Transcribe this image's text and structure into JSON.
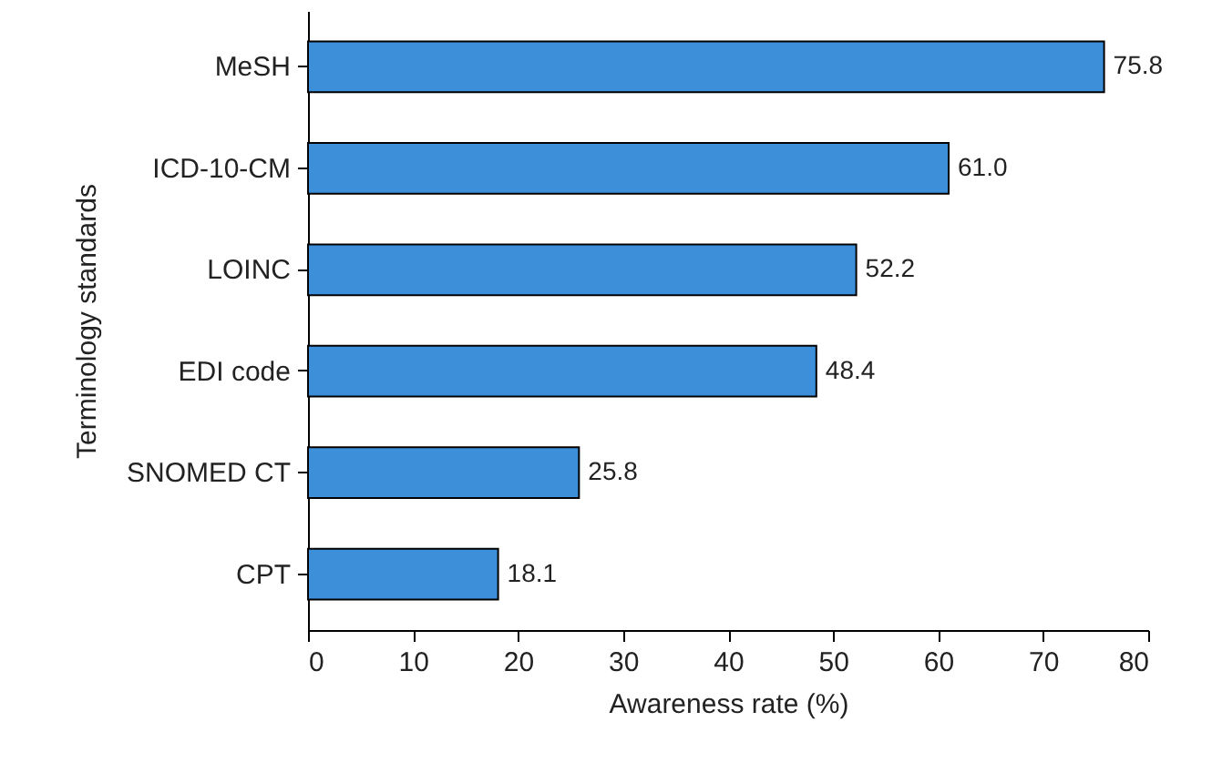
{
  "chart_data": {
    "type": "bar",
    "orientation": "horizontal",
    "xlabel": "Awareness rate (%)",
    "ylabel": "Terminology standards",
    "categories": [
      "MeSH",
      "ICD-10-CM",
      "LOINC",
      "EDI code",
      "SNOMED CT",
      "CPT"
    ],
    "values": [
      75.8,
      61.0,
      52.2,
      48.4,
      25.8,
      18.1
    ],
    "value_labels": [
      "75.8",
      "61.0",
      "52.2",
      "48.4",
      "25.8",
      "18.1"
    ],
    "color": "#3d8fd9",
    "xlim": [
      0,
      80
    ],
    "xticks": [
      0,
      10,
      20,
      30,
      40,
      50,
      60,
      70,
      80
    ],
    "grid": false
  }
}
